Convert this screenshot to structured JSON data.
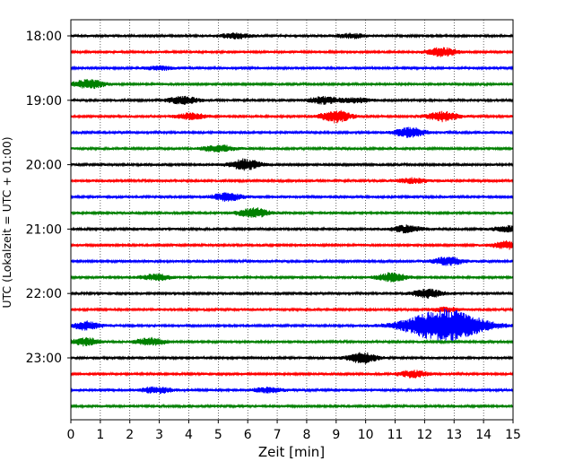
{
  "chart_data": {
    "type": "line",
    "title": "",
    "xlabel": "Zeit  [min]",
    "ylabel": "UTC (Lokalzeit = UTC + 01:00)",
    "xlim": [
      0,
      15
    ],
    "x_ticks": [
      "0",
      "1",
      "2",
      "3",
      "4",
      "5",
      "6",
      "7",
      "8",
      "9",
      "10",
      "11",
      "12",
      "13",
      "14",
      "15"
    ],
    "y_ticks": [
      "18:00",
      "19:00",
      "20:00",
      "21:00",
      "22:00",
      "23:00"
    ],
    "grid": "vertical dotted at each minute",
    "trace_interval_min": 15,
    "trace_color_cycle": [
      "#000000",
      "#ff0000",
      "#0000ff",
      "#008000"
    ],
    "traces": [
      {
        "start": "18:00",
        "color": "#000000",
        "bursts": [
          [
            5.6,
            0.9
          ],
          [
            9.5,
            0.7
          ]
        ]
      },
      {
        "start": "18:15",
        "color": "#ff0000",
        "bursts": [
          [
            12.6,
            1.4
          ]
        ]
      },
      {
        "start": "18:30",
        "color": "#0000ff",
        "bursts": [
          [
            3.0,
            0.6
          ]
        ]
      },
      {
        "start": "18:45",
        "color": "#008000",
        "bursts": [
          [
            0.6,
            1.5
          ]
        ]
      },
      {
        "start": "19:00",
        "color": "#000000",
        "bursts": [
          [
            3.8,
            1.3
          ],
          [
            8.6,
            1.2
          ],
          [
            9.7,
            0.7
          ]
        ]
      },
      {
        "start": "19:15",
        "color": "#ff0000",
        "bursts": [
          [
            4.1,
            1.0
          ],
          [
            9.0,
            2.0
          ],
          [
            12.6,
            1.6
          ]
        ]
      },
      {
        "start": "19:30",
        "color": "#0000ff",
        "bursts": [
          [
            11.5,
            1.6
          ]
        ]
      },
      {
        "start": "19:45",
        "color": "#008000",
        "bursts": [
          [
            5.0,
            1.2
          ]
        ]
      },
      {
        "start": "20:00",
        "color": "#000000",
        "bursts": [
          [
            5.9,
            1.8
          ]
        ]
      },
      {
        "start": "20:15",
        "color": "#ff0000",
        "bursts": [
          [
            11.6,
            0.8
          ]
        ]
      },
      {
        "start": "20:30",
        "color": "#0000ff",
        "bursts": [
          [
            5.3,
            1.3
          ]
        ]
      },
      {
        "start": "20:45",
        "color": "#008000",
        "bursts": [
          [
            6.2,
            1.6
          ]
        ]
      },
      {
        "start": "21:00",
        "color": "#000000",
        "bursts": [
          [
            11.4,
            1.2
          ],
          [
            14.9,
            1.0
          ]
        ]
      },
      {
        "start": "21:15",
        "color": "#ff0000",
        "bursts": [
          [
            14.8,
            1.2
          ]
        ]
      },
      {
        "start": "21:30",
        "color": "#0000ff",
        "bursts": [
          [
            12.8,
            1.3
          ]
        ]
      },
      {
        "start": "21:45",
        "color": "#008000",
        "bursts": [
          [
            2.9,
            1.0
          ],
          [
            10.9,
            1.4
          ]
        ]
      },
      {
        "start": "22:00",
        "color": "#000000",
        "bursts": [
          [
            12.1,
            1.4
          ]
        ]
      },
      {
        "start": "22:15",
        "color": "#ff0000",
        "bursts": [
          [
            12.7,
            0.6
          ]
        ]
      },
      {
        "start": "22:30",
        "color": "#0000ff",
        "bursts": [
          [
            12.7,
            5.5
          ],
          [
            0.5,
            1.3
          ]
        ]
      },
      {
        "start": "22:45",
        "color": "#008000",
        "bursts": [
          [
            0.5,
            1.2
          ],
          [
            2.7,
            1.2
          ]
        ]
      },
      {
        "start": "23:00",
        "color": "#000000",
        "bursts": [
          [
            9.9,
            1.8
          ]
        ]
      },
      {
        "start": "23:15",
        "color": "#ff0000",
        "bursts": [
          [
            11.6,
            1.1
          ]
        ]
      },
      {
        "start": "23:30",
        "color": "#0000ff",
        "bursts": [
          [
            2.9,
            1.0
          ],
          [
            6.7,
            0.8
          ]
        ]
      },
      {
        "start": "23:45",
        "color": "#008000",
        "bursts": []
      }
    ]
  }
}
